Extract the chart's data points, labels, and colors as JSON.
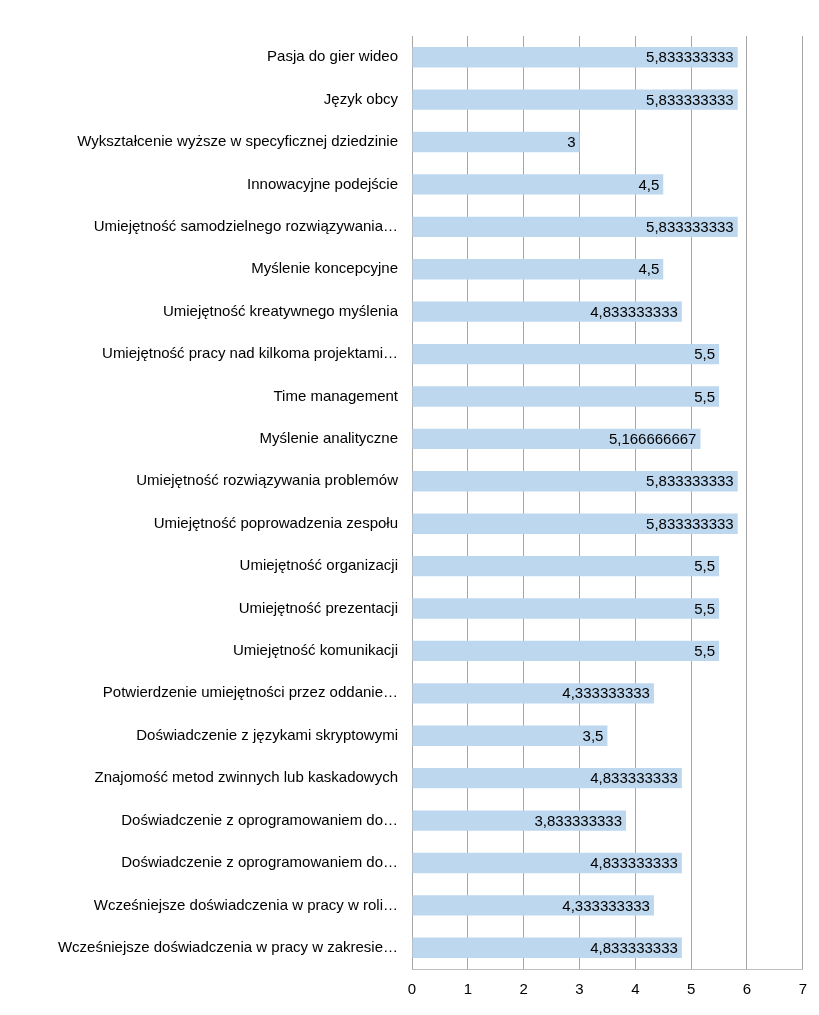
{
  "chart_data": {
    "type": "bar",
    "orientation": "horizontal",
    "categories": [
      "Pasja do gier wideo",
      "Język obcy",
      "Wykształcenie wyższe w specyficznej dziedzinie",
      "Innowacyjne podejście",
      "Umiejętność samodzielnego rozwiązywania…",
      "Myślenie koncepcyjne",
      "Umiejętność kreatywnego myślenia",
      "Umiejętność pracy nad kilkoma projektami…",
      "Time management",
      "Myślenie analityczne",
      "Umiejętność rozwiązywania problemów",
      "Umiejętność poprowadzenia zespołu",
      "Umiejętność organizacji",
      "Umiejętność prezentacji",
      "Umiejętność komunikacji",
      "Potwierdzenie umiejętności przez oddanie…",
      "Doświadczenie z językami skryptowymi",
      "Znajomość metod zwinnych lub kaskadowych",
      "Doświadczenie z oprogramowaniem do…",
      "Doświadczenie z oprogramowaniem do…",
      "Wcześniejsze doświadczenia w pracy w roli…",
      "Wcześniejsze doświadczenia w pracy w zakresie…"
    ],
    "values": [
      5.833333333,
      5.833333333,
      3,
      4.5,
      5.833333333,
      4.5,
      4.833333333,
      5.5,
      5.5,
      5.166666667,
      5.833333333,
      5.833333333,
      5.5,
      5.5,
      5.5,
      4.333333333,
      3.5,
      4.833333333,
      3.833333333,
      4.833333333,
      4.333333333,
      4.833333333
    ],
    "value_labels": [
      "5,833333333",
      "5,833333333",
      "3",
      "4,5",
      "5,833333333",
      "4,5",
      "4,833333333",
      "5,5",
      "5,5",
      "5,166666667",
      "5,833333333",
      "5,833333333",
      "5,5",
      "5,5",
      "5,5",
      "4,333333333",
      "3,5",
      "4,833333333",
      "3,833333333",
      "4,833333333",
      "4,333333333",
      "4,833333333"
    ],
    "color": "#bdd7ee",
    "xlim": [
      0,
      7
    ],
    "xticks": [
      0,
      1,
      2,
      3,
      4,
      5,
      6,
      7
    ],
    "grid": "x",
    "legend": false
  }
}
